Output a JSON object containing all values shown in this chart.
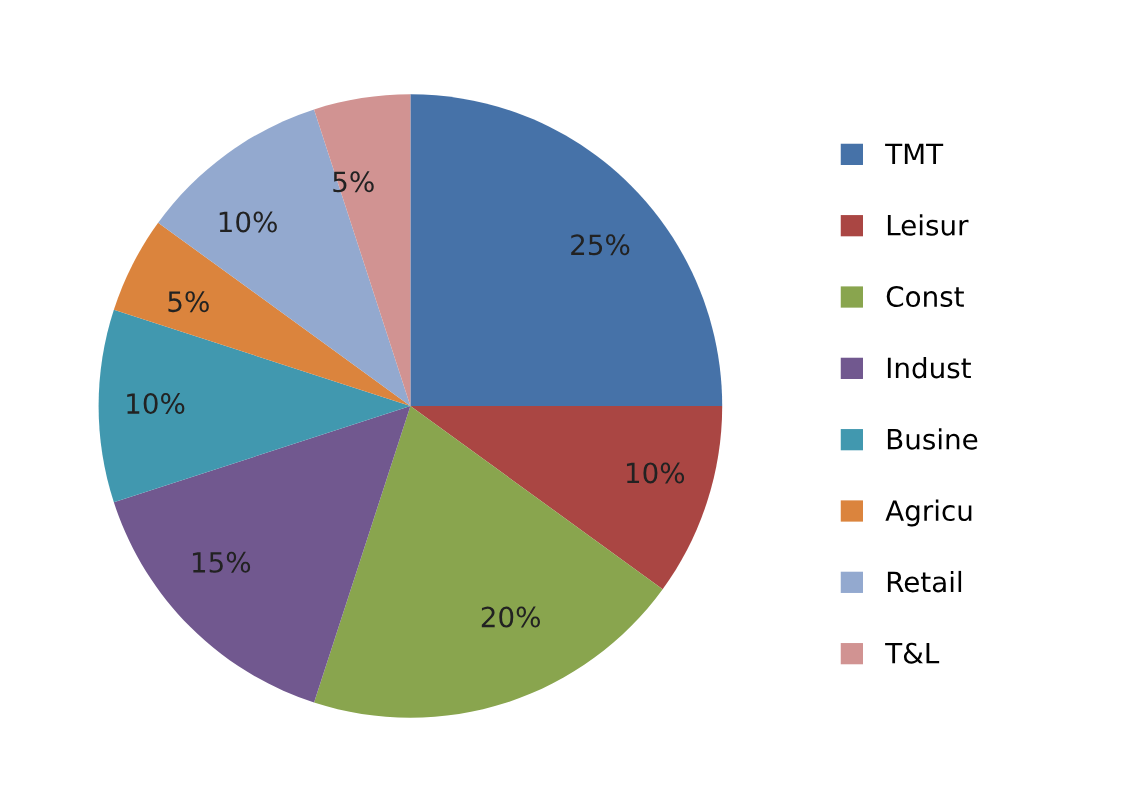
{
  "chart_data": {
    "type": "pie",
    "categories": [
      "TMT",
      "Leisur",
      "Const",
      "Indust",
      "Busine",
      "Agricu",
      "Retail",
      "T&L"
    ],
    "values": [
      25,
      10,
      20,
      15,
      10,
      5,
      10,
      5
    ],
    "colors": [
      "#4672a8",
      "#aa4643",
      "#89a54e",
      "#71588f",
      "#4198af",
      "#db843d",
      "#93a9cf",
      "#d19392"
    ],
    "value_labels": [
      "25%",
      "10%",
      "20%",
      "15%",
      "10%",
      "5%",
      "10%",
      "5%"
    ],
    "legend": "right"
  }
}
